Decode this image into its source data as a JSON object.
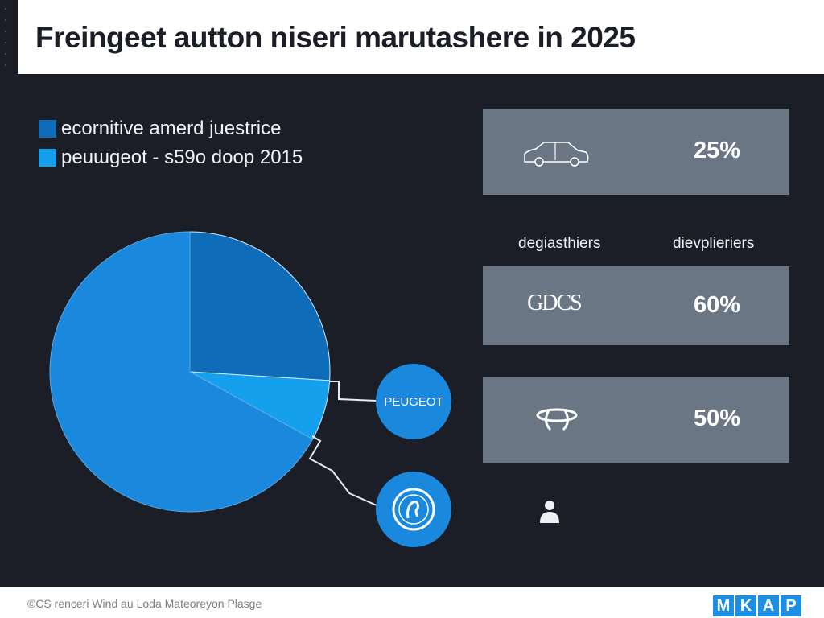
{
  "header": {
    "title": "Freingeet autton niseri marutashere in 2025"
  },
  "legend": [
    {
      "label": "ecornitive amerd juestrice",
      "color": "#0f6cb8"
    },
    {
      "label": "peuɯgeot - s59o doop 2015",
      "color": "#15a0ee"
    }
  ],
  "chart_data": {
    "type": "pie",
    "slices": [
      {
        "value": 26,
        "color": "#0f6cb8"
      },
      {
        "value": 7,
        "color": "#15a0ee"
      },
      {
        "value": 67,
        "color": "#1a88dc"
      }
    ]
  },
  "callouts": [
    {
      "label": "PEUGEOT",
      "icon": "peugeot-text-logo"
    },
    {
      "label": "",
      "icon": "lion-emblem-icon"
    }
  ],
  "stats": {
    "columns": [
      "degiasthiers",
      "dievplieriers"
    ],
    "cards": [
      {
        "icon": "car-icon",
        "logo_text": "",
        "value": "25%"
      },
      {
        "icon": "gdcs-logo",
        "logo_text": "GDCS",
        "value": "60%"
      },
      {
        "icon": "ring-emblem-icon",
        "logo_text": "",
        "value": "50%"
      }
    ],
    "extra_icon": "person-icon"
  },
  "footer": {
    "credit": "©CS renceri Wind au Loda Mateoreyon Plasge",
    "brand_letters": [
      "M",
      "K",
      "A",
      "P"
    ]
  }
}
